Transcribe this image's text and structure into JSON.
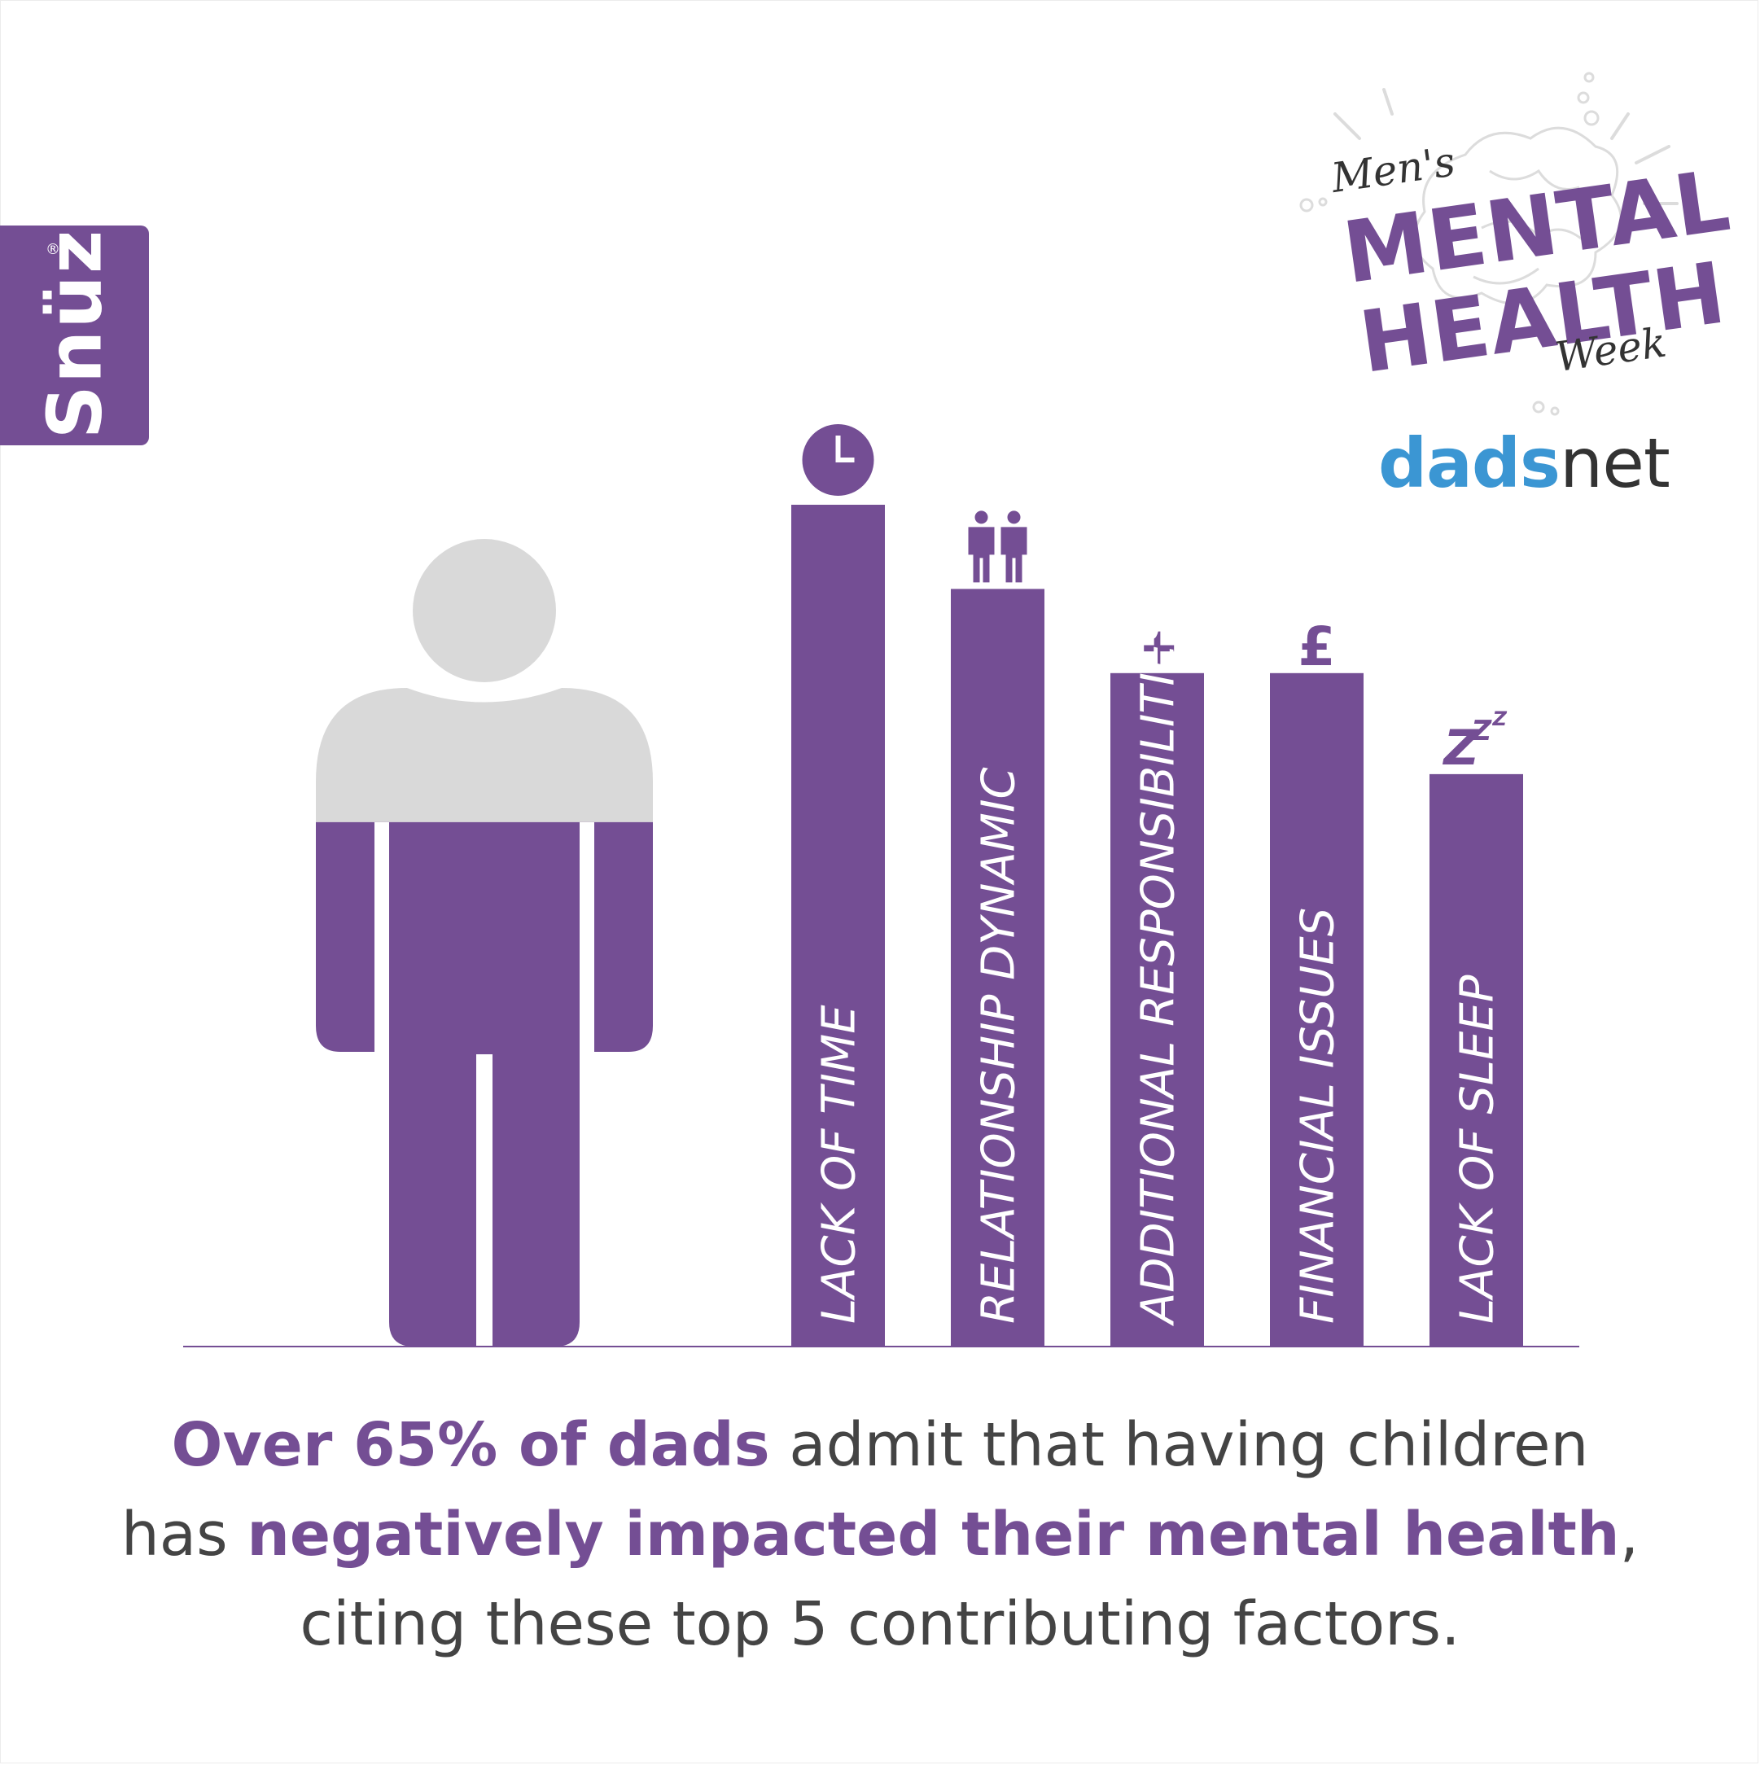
{
  "brand": {
    "snuz_logo": "Snüz",
    "snuz_reg": "®",
    "campaign_logo": {
      "mens": "Men's",
      "mental": "MENTAL",
      "health": "HEALTH",
      "week": "Week"
    },
    "partner_logo": {
      "dads": "dads",
      "net": "net"
    }
  },
  "colors": {
    "purple": "#744e94",
    "grey": "#d9d9d9",
    "text": "#444444",
    "dadsnet_blue": "#3b96d3"
  },
  "chart_data": {
    "type": "bar",
    "categories": [
      "LACK OF TIME",
      "RELATIONSHIP DYNAMIC",
      "ADDITIONAL RESPONSIBILITIES",
      "FINANCIAL ISSUES",
      "LACK OF SLEEP"
    ],
    "values": [
      5,
      4.5,
      4,
      4,
      3.4
    ],
    "ylim": [
      0,
      5
    ],
    "icons": [
      "clock-icon",
      "couple-icon",
      "plus-icon",
      "pound-icon",
      "zzz-icon"
    ],
    "icon_glyphs": [
      "",
      "",
      "+",
      "£",
      ""
    ],
    "person_figure": {
      "label": "Over 65% of dads",
      "share": 0.65
    }
  },
  "headline": {
    "part1": "Over 65% of dads",
    "part2": " admit that having children",
    "part3": "has ",
    "part4": "negatively impacted their mental health",
    "part5": ",",
    "part6": "citing these top 5 contributing factors."
  }
}
